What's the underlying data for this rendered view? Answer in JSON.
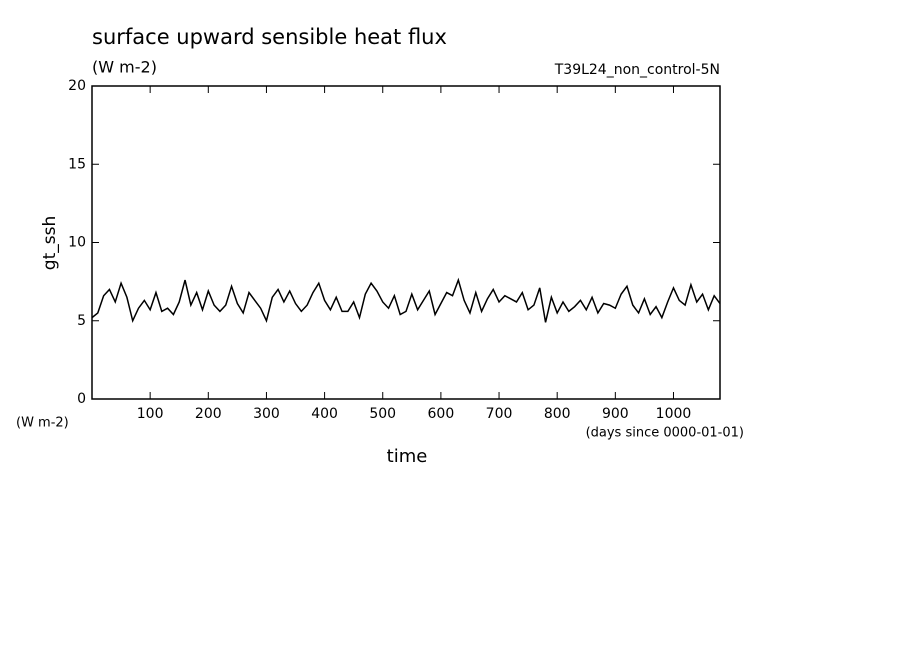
{
  "chart_data": {
    "type": "line",
    "title": "surface upward sensible heat flux",
    "subtitle": "(W m-2)",
    "annotation": "T39L24_non_control-5N",
    "y_label": "gt_ssh",
    "y_units": "(W m-2)",
    "x_label": "time",
    "x_units": "(days since 0000-01-01)",
    "x": [
      0,
      10,
      20,
      30,
      40,
      50,
      60,
      70,
      80,
      90,
      100,
      110,
      120,
      130,
      140,
      150,
      160,
      170,
      180,
      190,
      200,
      210,
      220,
      230,
      240,
      250,
      260,
      270,
      280,
      290,
      300,
      310,
      320,
      330,
      340,
      350,
      360,
      370,
      380,
      390,
      400,
      410,
      420,
      430,
      440,
      450,
      460,
      470,
      480,
      490,
      500,
      510,
      520,
      530,
      540,
      550,
      560,
      570,
      580,
      590,
      600,
      610,
      620,
      630,
      640,
      650,
      660,
      670,
      680,
      690,
      700,
      710,
      720,
      730,
      740,
      750,
      760,
      770,
      780,
      790,
      800,
      810,
      820,
      830,
      840,
      850,
      860,
      870,
      880,
      890,
      900,
      910,
      920,
      930,
      940,
      950,
      960,
      970,
      980,
      990,
      1000,
      1010,
      1020,
      1030,
      1040,
      1050,
      1060,
      1070,
      1080
    ],
    "series": [
      {
        "name": "gt_ssh",
        "color": "#000000",
        "values": [
          5.2,
          5.5,
          6.6,
          7.0,
          6.2,
          7.4,
          6.5,
          5.0,
          5.8,
          6.3,
          5.7,
          6.8,
          5.6,
          5.8,
          5.4,
          6.2,
          7.6,
          6.0,
          6.8,
          5.7,
          6.9,
          6.0,
          5.6,
          6.0,
          7.2,
          6.1,
          5.5,
          6.8,
          6.3,
          5.8,
          5.0,
          6.5,
          7.0,
          6.2,
          6.9,
          6.1,
          5.6,
          6.0,
          6.8,
          7.4,
          6.3,
          5.7,
          6.5,
          5.6,
          5.6,
          6.2,
          5.2,
          6.7,
          7.4,
          6.9,
          6.2,
          5.8,
          6.6,
          5.4,
          5.6,
          6.7,
          5.7,
          6.3,
          6.9,
          5.4,
          6.1,
          6.8,
          6.6,
          7.6,
          6.3,
          5.5,
          6.8,
          5.6,
          6.4,
          7.0,
          6.2,
          6.6,
          6.4,
          6.2,
          6.8,
          5.7,
          6.0,
          7.1,
          4.9,
          6.5,
          5.5,
          6.2,
          5.6,
          5.9,
          6.3,
          5.7,
          6.5,
          5.5,
          6.1,
          6.0,
          5.8,
          6.7,
          7.2,
          6.0,
          5.5,
          6.4,
          5.4,
          5.9,
          5.2,
          6.2,
          7.1,
          6.3,
          6.0,
          7.3,
          6.2,
          6.7,
          5.7,
          6.6,
          6.1
        ]
      }
    ],
    "xlim": [
      0,
      1080
    ],
    "ylim": [
      0,
      20
    ],
    "xticks": [
      100,
      200,
      300,
      400,
      500,
      600,
      700,
      800,
      900,
      1000
    ],
    "yticks": [
      0,
      5,
      10,
      15,
      20
    ]
  }
}
